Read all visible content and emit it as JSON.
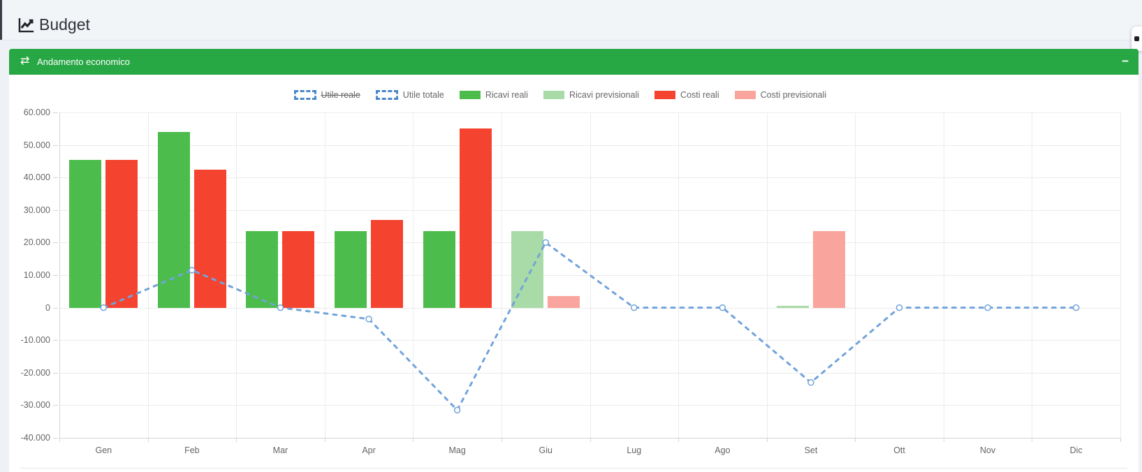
{
  "header": {
    "title": "Budget",
    "icon": "chart-line"
  },
  "panel": {
    "title": "Andamento economico",
    "icon": "exchange-arrows",
    "collapse_label": "−",
    "header_color": "#28a745"
  },
  "floating_button": {
    "icon": "gear"
  },
  "colors": {
    "page_bg": "#eef1f6",
    "panel_bg": "#ffffff",
    "accent_green": "#28a745",
    "line_blue": "#72a3da",
    "legend_dash_blue": "#4a86c8"
  },
  "chart_data": {
    "type": "bar-line",
    "title": "",
    "xlabel": "",
    "ylabel": "",
    "categories": [
      "Gen",
      "Feb",
      "Mar",
      "Apr",
      "Mag",
      "Giu",
      "Lug",
      "Ago",
      "Set",
      "Ott",
      "Nov",
      "Dic"
    ],
    "ylim": [
      -40000,
      60000
    ],
    "ytick_step": 10000,
    "ytick_labels": [
      "60.000",
      "50.000",
      "40.000",
      "30.000",
      "20.000",
      "10.000",
      "0",
      "-10.000",
      "-20.000",
      "-30.000",
      "-40.000"
    ],
    "grid": true,
    "legend_position": "top",
    "series": [
      {
        "name": "Utile reale",
        "kind": "line",
        "hidden": true,
        "color": "#72a3da",
        "values": []
      },
      {
        "name": "Utile totale",
        "kind": "line",
        "hidden": false,
        "style": "dashed",
        "color": "#72a3da",
        "values": [
          0,
          11500,
          0,
          -3500,
          -31500,
          20000,
          0,
          0,
          -23000,
          0,
          0,
          0
        ]
      },
      {
        "name": "Ricavi reali",
        "kind": "bar",
        "slot": "left",
        "color": "#4cbd4c",
        "values": [
          45500,
          54000,
          23500,
          23500,
          23500,
          0,
          0,
          0,
          0,
          0,
          0,
          0
        ]
      },
      {
        "name": "Ricavi previsionali",
        "kind": "bar",
        "slot": "left",
        "color": "#a8dba8",
        "values": [
          0,
          0,
          0,
          0,
          0,
          23500,
          0,
          0,
          500,
          0,
          0,
          0
        ]
      },
      {
        "name": "Costi reali",
        "kind": "bar",
        "slot": "right",
        "color": "#f4432e",
        "values": [
          45500,
          42500,
          23500,
          27000,
          55000,
          0,
          0,
          0,
          0,
          0,
          0,
          0
        ]
      },
      {
        "name": "Costi previsionali",
        "kind": "bar",
        "slot": "right",
        "color": "#f9a49c",
        "values": [
          0,
          0,
          0,
          0,
          0,
          3500,
          0,
          0,
          23500,
          0,
          0,
          0
        ]
      }
    ]
  }
}
